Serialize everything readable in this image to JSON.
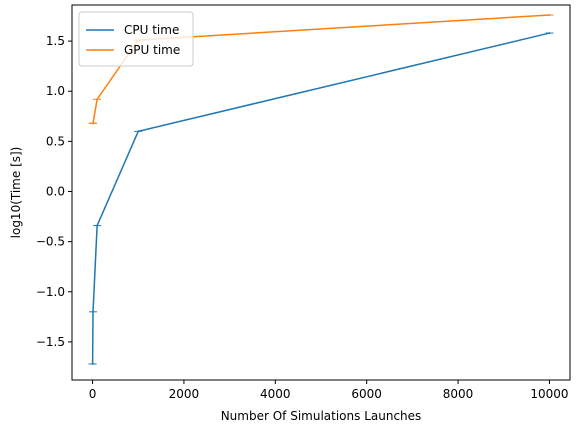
{
  "chart_data": {
    "type": "line",
    "title": "",
    "xlabel": "Number Of Simulations Launches",
    "ylabel": "log10(Time [s])",
    "xlim": [
      -450,
      10450
    ],
    "ylim": [
      -1.88,
      1.86
    ],
    "xticks": [
      0,
      2000,
      4000,
      6000,
      8000,
      10000
    ],
    "yticks": [
      -1.5,
      -1.0,
      -0.5,
      0.0,
      0.5,
      1.0,
      1.5
    ],
    "xtick_labels": [
      "0",
      "2000",
      "4000",
      "6000",
      "8000",
      "10000"
    ],
    "ytick_labels": [
      "−1.5",
      "−1.0",
      "−0.5",
      "0.0",
      "0.5",
      "1.0",
      "1.5"
    ],
    "grid": false,
    "legend_position": "top-left",
    "series": [
      {
        "name": "CPU time",
        "color": "#1f77b4",
        "x": [
          1,
          10,
          100,
          1000,
          10000
        ],
        "y": [
          -1.72,
          -1.2,
          -0.34,
          0.6,
          1.58
        ],
        "err": [
          0.01,
          0.01,
          0.01,
          0.01,
          0.01
        ]
      },
      {
        "name": "GPU time",
        "color": "#ff7f0e",
        "x": [
          1,
          10,
          100,
          1000,
          10000
        ],
        "y": [
          0.68,
          0.68,
          0.92,
          1.51,
          1.76
        ],
        "err": [
          0.01,
          0.01,
          0.01,
          0.01,
          0.01
        ]
      }
    ]
  }
}
